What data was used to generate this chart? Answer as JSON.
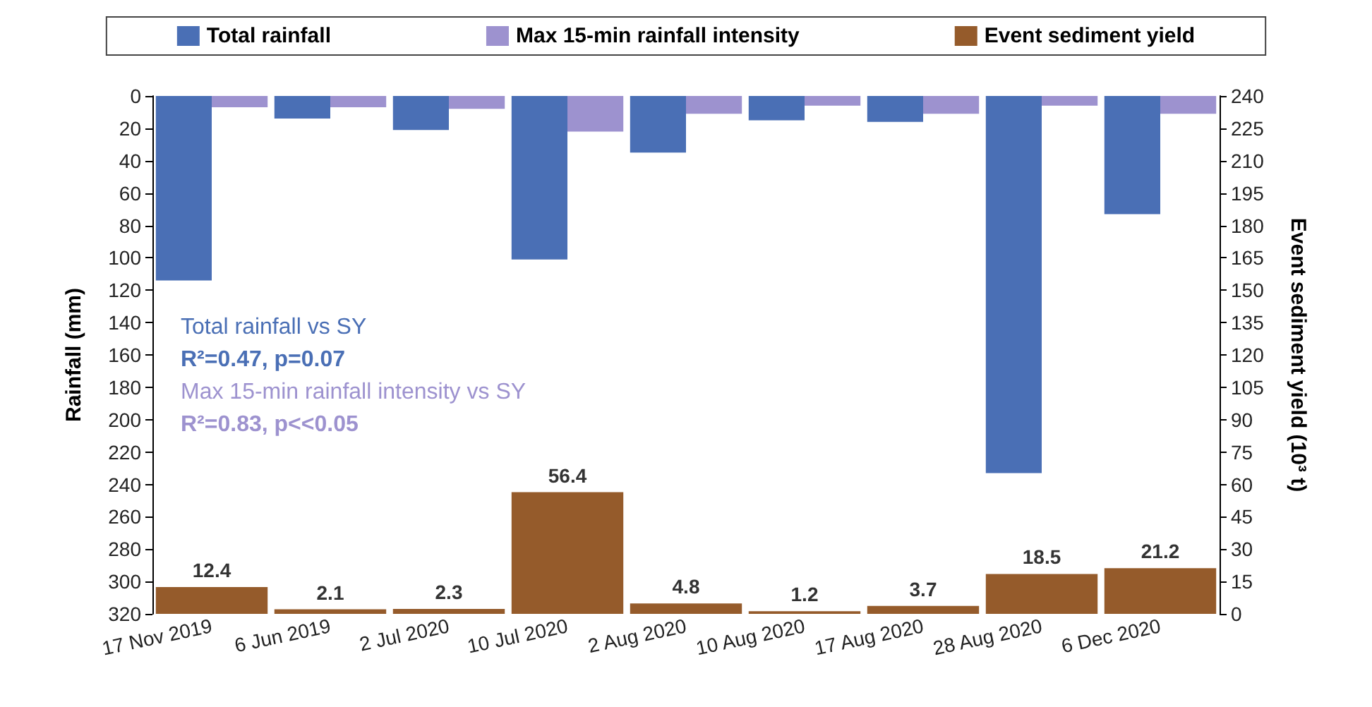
{
  "chart_data": {
    "type": "bar",
    "categories": [
      "17 Nov 2019",
      "6 Jun 2019",
      "2 Jul 2020",
      "10 Jul 2020",
      "2 Aug 2020",
      "10 Aug 2020",
      "17 Aug 2020",
      "28 Aug 2020",
      "6 Dec 2020"
    ],
    "ylabel": "Rainfall (mm)",
    "y2label": "Event sediment yield (10³ t)",
    "ylim": [
      320,
      0
    ],
    "yticks": [
      0,
      20,
      40,
      60,
      80,
      100,
      120,
      140,
      160,
      180,
      200,
      220,
      240,
      260,
      280,
      300,
      320
    ],
    "y2lim": [
      0,
      240
    ],
    "y2ticks": [
      0,
      15,
      30,
      45,
      60,
      75,
      90,
      105,
      120,
      135,
      150,
      165,
      180,
      195,
      210,
      225,
      240
    ],
    "series": [
      {
        "name": "Total rainfall",
        "color": "#4a6fb5",
        "values": [
          114,
          14,
          21,
          101,
          35,
          15,
          16,
          233,
          73
        ]
      },
      {
        "name": "Max 15-min rainfall intensity",
        "color": "#9d92cf",
        "values": [
          7,
          7,
          8,
          22,
          11,
          6,
          11,
          6,
          11
        ]
      },
      {
        "name": "Event sediment yield",
        "color": "#955b2b",
        "axis": "y2",
        "values": [
          12.4,
          2.1,
          2.3,
          56.4,
          4.8,
          1.2,
          3.7,
          18.5,
          21.2
        ],
        "value_labels": [
          "12.4",
          "2.1",
          "2.3",
          "56.4",
          "4.8",
          "1.2",
          "3.7",
          "18.5",
          "21.2"
        ]
      }
    ],
    "annotations": [
      "Total rainfall vs SY",
      "R²=0.47, p=0.07",
      "Max 15-min rainfall intensity vs SY",
      "R²=0.83, p<<0.05"
    ],
    "legend": "top",
    "grid": false
  }
}
